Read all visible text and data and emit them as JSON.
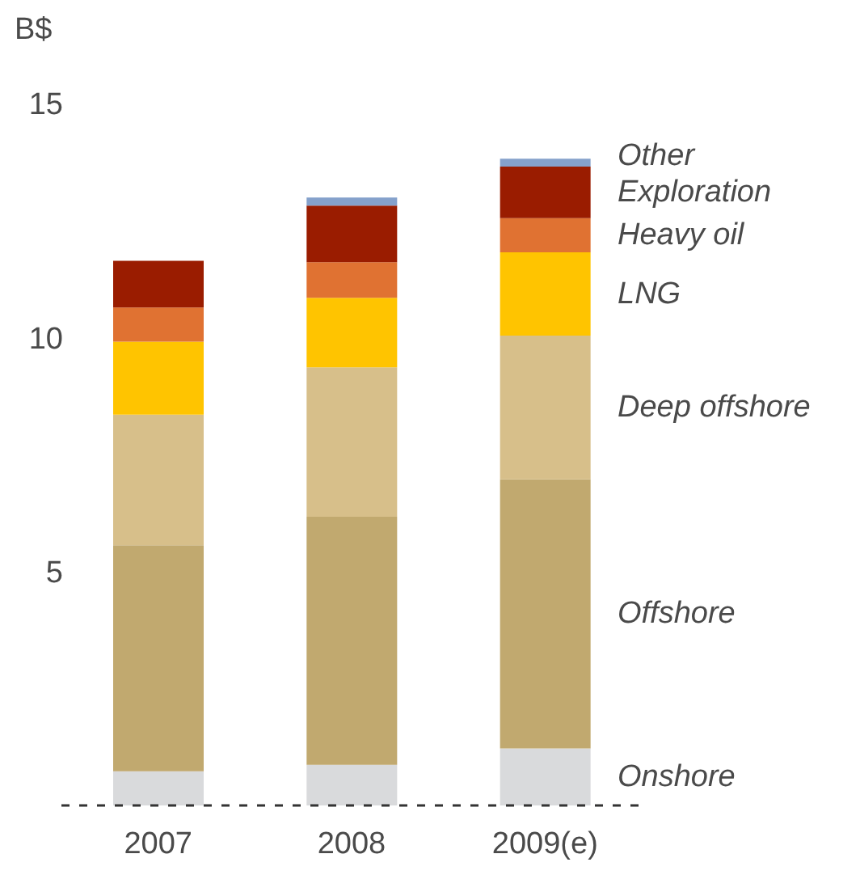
{
  "chart_data": {
    "type": "bar",
    "stacked": true,
    "ylabel": "B$",
    "categories": [
      "2007",
      "2008",
      "2009(e)"
    ],
    "series": [
      {
        "name": "Onshore",
        "color": "#d9dadc",
        "values": [
          0.73,
          0.87,
          1.22
        ]
      },
      {
        "name": "Offshore",
        "color": "#c1a96f",
        "values": [
          4.83,
          5.3,
          5.75
        ]
      },
      {
        "name": "Deep offshore",
        "color": "#d7bf8a",
        "values": [
          2.79,
          3.19,
          3.07
        ]
      },
      {
        "name": "LNG",
        "color": "#ffc400",
        "values": [
          1.56,
          1.49,
          1.78
        ]
      },
      {
        "name": "Heavy oil",
        "color": "#e07232",
        "values": [
          0.73,
          0.76,
          0.73
        ]
      },
      {
        "name": "Exploration",
        "color": "#9a1c00",
        "values": [
          1.0,
          1.21,
          1.1
        ]
      },
      {
        "name": "Other",
        "color": "#85a1cb",
        "values": [
          0,
          0.17,
          0.17
        ]
      }
    ],
    "ylim": [
      0,
      15
    ],
    "yticks": [
      5,
      10,
      15
    ],
    "grid": false,
    "legend": false
  }
}
